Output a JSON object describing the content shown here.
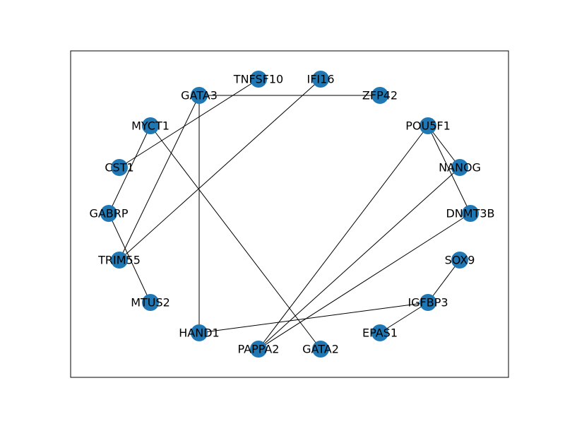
{
  "graph": {
    "node_color": "#1f77b4",
    "edge_color": "#000000",
    "nodes": [
      {
        "id": "GATA3",
        "label": "GATA3"
      },
      {
        "id": "TNFSF10",
        "label": "TNFSF10"
      },
      {
        "id": "IFI16",
        "label": "IFI16"
      },
      {
        "id": "ZFP42",
        "label": "ZFP42"
      },
      {
        "id": "POU5F1",
        "label": "POU5F1"
      },
      {
        "id": "NANOG",
        "label": "NANOG"
      },
      {
        "id": "DNMT3B",
        "label": "DNMT3B"
      },
      {
        "id": "SOX9",
        "label": "SOX9"
      },
      {
        "id": "IGFBP3",
        "label": "IGFBP3"
      },
      {
        "id": "EPAS1",
        "label": "EPAS1"
      },
      {
        "id": "GATA2",
        "label": "GATA2"
      },
      {
        "id": "PAPPA2",
        "label": "PAPPA2"
      },
      {
        "id": "HAND1",
        "label": "HAND1"
      },
      {
        "id": "MTUS2",
        "label": "MTUS2"
      },
      {
        "id": "TRIM55",
        "label": "TRIM55"
      },
      {
        "id": "GABRP",
        "label": "GABRP"
      },
      {
        "id": "CST1",
        "label": "CST1"
      },
      {
        "id": "MYCT1",
        "label": "MYCT1"
      }
    ],
    "edges": [
      [
        "GATA3",
        "ZFP42"
      ],
      [
        "GATA3",
        "HAND1"
      ],
      [
        "GATA3",
        "TRIM55"
      ],
      [
        "TNFSF10",
        "CST1"
      ],
      [
        "IFI16",
        "TRIM55"
      ],
      [
        "MYCT1",
        "GABRP"
      ],
      [
        "MYCT1",
        "GATA2"
      ],
      [
        "GABRP",
        "MTUS2"
      ],
      [
        "POU5F1",
        "NANOG"
      ],
      [
        "POU5F1",
        "DNMT3B"
      ],
      [
        "POU5F1",
        "PAPPA2"
      ],
      [
        "NANOG",
        "PAPPA2"
      ],
      [
        "DNMT3B",
        "PAPPA2"
      ],
      [
        "SOX9",
        "IGFBP3"
      ],
      [
        "IGFBP3",
        "EPAS1"
      ],
      [
        "IGFBP3",
        "HAND1"
      ]
    ]
  }
}
